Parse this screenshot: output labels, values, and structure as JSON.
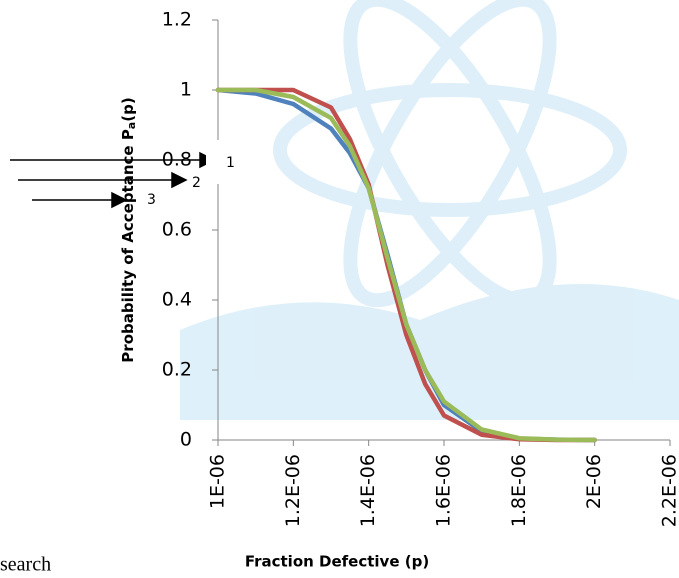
{
  "chart_data": {
    "type": "line",
    "x_label": "Fraction Defective (p)",
    "y_label_parts": [
      "Probability of Acceptance P",
      "a",
      "(p)"
    ],
    "x": [
      1e-06,
      1.1e-06,
      1.2e-06,
      1.3e-06,
      1.35e-06,
      1.4e-06,
      1.45e-06,
      1.5e-06,
      1.55e-06,
      1.6e-06,
      1.7e-06,
      1.8e-06,
      1.9e-06,
      2e-06
    ],
    "series": [
      {
        "color": "#4f81bd",
        "values": [
          1,
          0.99,
          0.96,
          0.89,
          0.82,
          0.72,
          0.53,
          0.33,
          0.2,
          0.1,
          0.025,
          0.004,
          0.001,
          0
        ]
      },
      {
        "color": "#c0504d",
        "values": [
          1,
          1,
          1,
          0.95,
          0.86,
          0.73,
          0.5,
          0.3,
          0.16,
          0.07,
          0.015,
          0.002,
          0,
          0
        ]
      },
      {
        "color": "#9bbb59",
        "values": [
          1,
          1,
          0.98,
          0.92,
          0.84,
          0.72,
          0.52,
          0.33,
          0.2,
          0.11,
          0.03,
          0.005,
          0.001,
          0
        ]
      }
    ],
    "xlim": [
      1e-06,
      2.2e-06
    ],
    "xticks": [
      {
        "value": 1e-06,
        "label": "1E-06"
      },
      {
        "value": 1.2e-06,
        "label": "1.2E-06"
      },
      {
        "value": 1.4e-06,
        "label": "1.4E-06"
      },
      {
        "value": 1.6e-06,
        "label": "1.6E-06"
      },
      {
        "value": 1.8e-06,
        "label": "1.8E-06"
      },
      {
        "value": 2e-06,
        "label": "2E-06"
      },
      {
        "value": 2.2e-06,
        "label": "2.2E-06"
      }
    ],
    "ylim": [
      0,
      1.2
    ],
    "yticks": [
      0,
      0.2,
      0.4,
      0.6,
      0.8,
      1,
      1.2
    ],
    "annotations": [
      "1",
      "2",
      "3"
    ],
    "footer_text": "search"
  }
}
